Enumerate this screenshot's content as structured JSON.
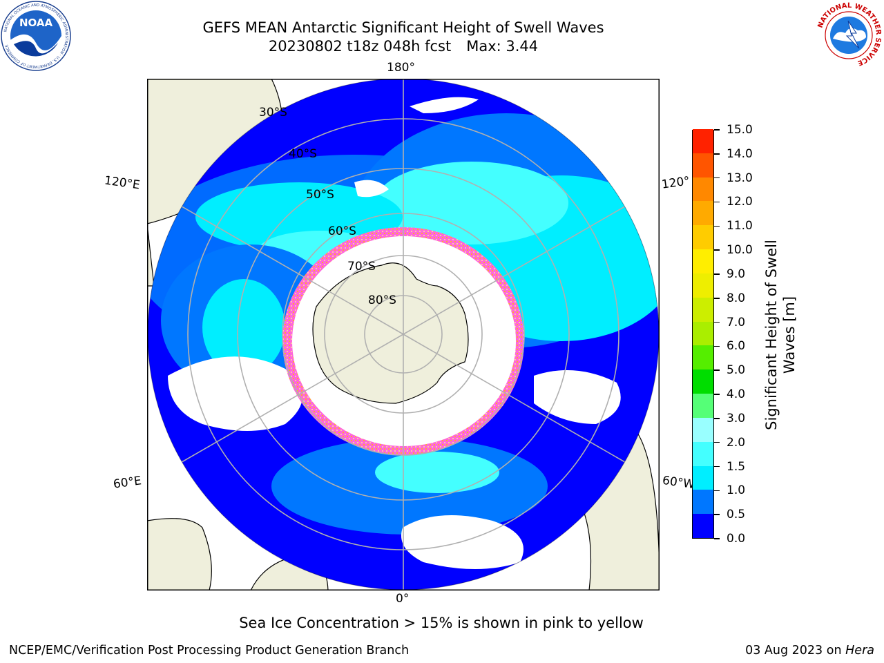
{
  "header": {
    "title_line1": "GEFS MEAN Antarctic Significant Height of Swell Waves",
    "run_info": "20230802 t18z 048h fcst",
    "max_info": "Max: 3.44"
  },
  "logos": {
    "left": {
      "name": "noaa-logo",
      "text": "NOAA",
      "ring_text": "NATIONAL OCEANIC AND ATMOSPHERIC ADMINISTRATION · U.S. DEPARTMENT OF COMMERCE"
    },
    "right": {
      "name": "nws-logo",
      "ring_text": "NATIONAL WEATHER SERVICE"
    }
  },
  "map": {
    "projection": "south-polar-stereographic",
    "lon_labels": {
      "top": "180°",
      "bottom": "0°",
      "left_upper": "120°E",
      "right_upper": "120°",
      "left_lower": "60°E",
      "right_lower": "60°W"
    },
    "lat_labels": [
      "30°S",
      "40°S",
      "50°S",
      "60°S",
      "70°S",
      "80°S"
    ],
    "colors": {
      "land": "#efefdc",
      "ocean_low": "#0000ff",
      "ocean_mid": "#0077ff",
      "ocean_high": "#00ffff",
      "sea_ice": "#ff44dd",
      "gridline": "#b0b0b0"
    }
  },
  "colorbar": {
    "label": "Significant Height of Swell Waves [m]",
    "levels": [
      "0.0",
      "0.5",
      "1.0",
      "1.5",
      "2.0",
      "3.0",
      "4.0",
      "5.0",
      "6.0",
      "7.0",
      "8.0",
      "9.0",
      "10.0",
      "11.0",
      "12.0",
      "13.0",
      "14.0",
      "15.0"
    ],
    "colors": [
      "#0000ff",
      "#0077ff",
      "#00eeff",
      "#44ffff",
      "#99ffff",
      "#55ff77",
      "#00dd00",
      "#55ee00",
      "#aaee00",
      "#ccee00",
      "#eeee00",
      "#ffee00",
      "#ffcc00",
      "#ffaa00",
      "#ff8800",
      "#ff5500",
      "#ff2200"
    ]
  },
  "note": "Sea Ice Concentration > 15% is shown in pink to yellow",
  "footer": {
    "left": "NCEP/EMC/Verification Post Processing Product Generation Branch",
    "right_prefix": "03 Aug 2023 on",
    "right_host": "Hera"
  }
}
